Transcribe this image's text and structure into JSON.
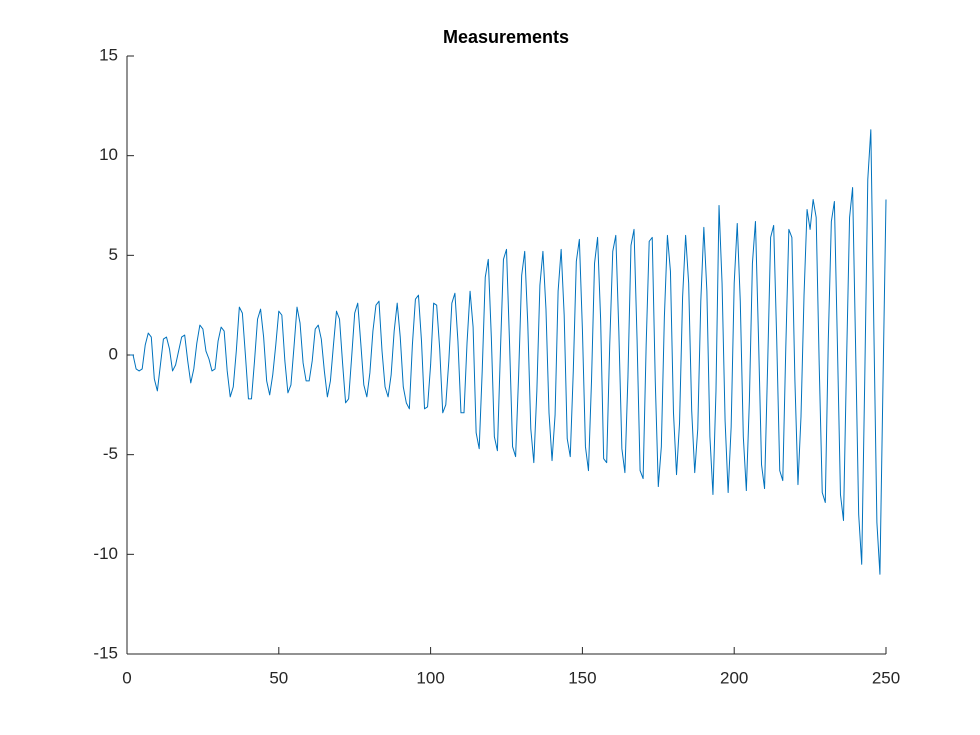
{
  "chart_data": {
    "type": "line",
    "title": "Measurements",
    "x": [
      1,
      2,
      3,
      4,
      5,
      6,
      7,
      8,
      9,
      10,
      11,
      12,
      13,
      14,
      15,
      16,
      17,
      18,
      19,
      20,
      21,
      22,
      23,
      24,
      25,
      26,
      27,
      28,
      29,
      30,
      31,
      32,
      33,
      34,
      35,
      36,
      37,
      38,
      39,
      40,
      41,
      42,
      43,
      44,
      45,
      46,
      47,
      48,
      49,
      50,
      51,
      52,
      53,
      54,
      55,
      56,
      57,
      58,
      59,
      60,
      61,
      62,
      63,
      64,
      65,
      66,
      67,
      68,
      69,
      70,
      71,
      72,
      73,
      74,
      75,
      76,
      77,
      78,
      79,
      80,
      81,
      82,
      83,
      84,
      85,
      86,
      87,
      88,
      89,
      90,
      91,
      92,
      93,
      94,
      95,
      96,
      97,
      98,
      99,
      100,
      101,
      102,
      103,
      104,
      105,
      106,
      107,
      108,
      109,
      110,
      111,
      112,
      113,
      114,
      115,
      116,
      117,
      118,
      119,
      120,
      121,
      122,
      123,
      124,
      125,
      126,
      127,
      128,
      129,
      130,
      131,
      132,
      133,
      134,
      135,
      136,
      137,
      138,
      139,
      140,
      141,
      142,
      143,
      144,
      145,
      146,
      147,
      148,
      149,
      150,
      151,
      152,
      153,
      154,
      155,
      156,
      157,
      158,
      159,
      160,
      161,
      162,
      163,
      164,
      165,
      166,
      167,
      168,
      169,
      170,
      171,
      172,
      173,
      174,
      175,
      176,
      177,
      178,
      179,
      180,
      181,
      182,
      183,
      184,
      185,
      186,
      187,
      188,
      189,
      190,
      191,
      192,
      193,
      194,
      195,
      196,
      197,
      198,
      199,
      200,
      201,
      202,
      203,
      204,
      205,
      206,
      207,
      208,
      209,
      210,
      211,
      212,
      213,
      214,
      215,
      216,
      217,
      218,
      219,
      220,
      221,
      222,
      223,
      224,
      225,
      226,
      227,
      228,
      229,
      230,
      231,
      232,
      233,
      234,
      235,
      236,
      237,
      238,
      239,
      240,
      241,
      242,
      243,
      244,
      245,
      246,
      247,
      248,
      249,
      250
    ],
    "series": [
      {
        "color": "#0072bd",
        "values": [
          0,
          0,
          -0.7,
          -0.8,
          -0.7,
          0.5,
          1.1,
          0.9,
          -1.2,
          -1.8,
          -0.5,
          0.8,
          0.9,
          0.3,
          -0.8,
          -0.5,
          0.2,
          0.9,
          1.0,
          -0.3,
          -1.4,
          -0.7,
          0.6,
          1.5,
          1.3,
          0.2,
          -0.2,
          -0.8,
          -0.7,
          0.7,
          1.4,
          1.2,
          -0.8,
          -2.1,
          -1.6,
          0.2,
          2.4,
          2.1,
          0,
          -2.2,
          -2.2,
          -0.3,
          1.8,
          2.3,
          0.9,
          -1.3,
          -2.0,
          -1.0,
          0.5,
          2.2,
          2.0,
          -0.3,
          -1.9,
          -1.5,
          0.4,
          2.4,
          1.6,
          -0.4,
          -1.3,
          -1.3,
          -0.3,
          1.3,
          1.5,
          0.8,
          -0.8,
          -2.1,
          -1.3,
          0.5,
          2.2,
          1.8,
          -0.4,
          -2.4,
          -2.2,
          -0.1,
          2.1,
          2.6,
          0.6,
          -1.5,
          -2.1,
          -0.9,
          1.2,
          2.5,
          2.7,
          0.2,
          -1.6,
          -2.1,
          -1.0,
          1.2,
          2.6,
          0.9,
          -1.6,
          -2.4,
          -2.7,
          0.5,
          2.8,
          3.0,
          0.7,
          -2.7,
          -2.6,
          -0.5,
          2.6,
          2.5,
          0.3,
          -2.9,
          -2.5,
          -0.3,
          2.6,
          3.1,
          0.7,
          -2.9,
          -2.9,
          0.6,
          3.2,
          1.4,
          -3.9,
          -4.7,
          -0.8,
          3.9,
          4.8,
          0.9,
          -4.1,
          -4.8,
          0.2,
          4.8,
          5.3,
          0.6,
          -4.6,
          -5.1,
          -1.0,
          4.0,
          5.2,
          1.6,
          -3.7,
          -5.4,
          -1.8,
          3.5,
          5.2,
          2.3,
          -2.9,
          -5.3,
          -3.0,
          3.2,
          5.3,
          2.0,
          -4.2,
          -5.1,
          -0.8,
          4.7,
          5.8,
          1.3,
          -4.6,
          -5.8,
          -1.3,
          4.6,
          5.9,
          1.8,
          -5.2,
          -5.4,
          0.5,
          5.2,
          6.0,
          1.2,
          -4.7,
          -5.9,
          -1.1,
          5.5,
          6.3,
          0.8,
          -5.8,
          -6.2,
          0.5,
          5.7,
          5.9,
          -1.3,
          -6.6,
          -4.6,
          1.9,
          6.0,
          4.2,
          -2.9,
          -6.0,
          -3.4,
          2.9,
          6.0,
          3.6,
          -2.8,
          -5.9,
          -3.7,
          2.7,
          6.4,
          3.2,
          -4.1,
          -7.0,
          -1.8,
          7.5,
          3.6,
          -3.3,
          -6.9,
          -3.6,
          3.6,
          6.6,
          2.7,
          -4.1,
          -6.8,
          -2.3,
          4.6,
          6.7,
          0.9,
          -5.5,
          -6.7,
          -0.6,
          5.9,
          6.5,
          0.8,
          -5.8,
          -6.3,
          0.4,
          6.3,
          5.9,
          -1.3,
          -6.5,
          -3.1,
          3.0,
          7.3,
          6.3,
          7.8,
          6.9,
          -0.5,
          -6.9,
          -7.4,
          0.8,
          6.7,
          7.7,
          0.5,
          -7.0,
          -8.3,
          -0.4,
          6.9,
          8.4,
          0.3,
          -8.0,
          -10.5,
          -1.2,
          8.8,
          11.3,
          1.3,
          -8.4,
          -11.0,
          -1.5,
          7.8
        ]
      }
    ],
    "xlim": [
      0,
      250
    ],
    "xticks": [
      0,
      50,
      100,
      150,
      200,
      250
    ],
    "ylim": [
      -15,
      15
    ],
    "yticks": [
      -15,
      -10,
      -5,
      0,
      5,
      10,
      15
    ]
  }
}
